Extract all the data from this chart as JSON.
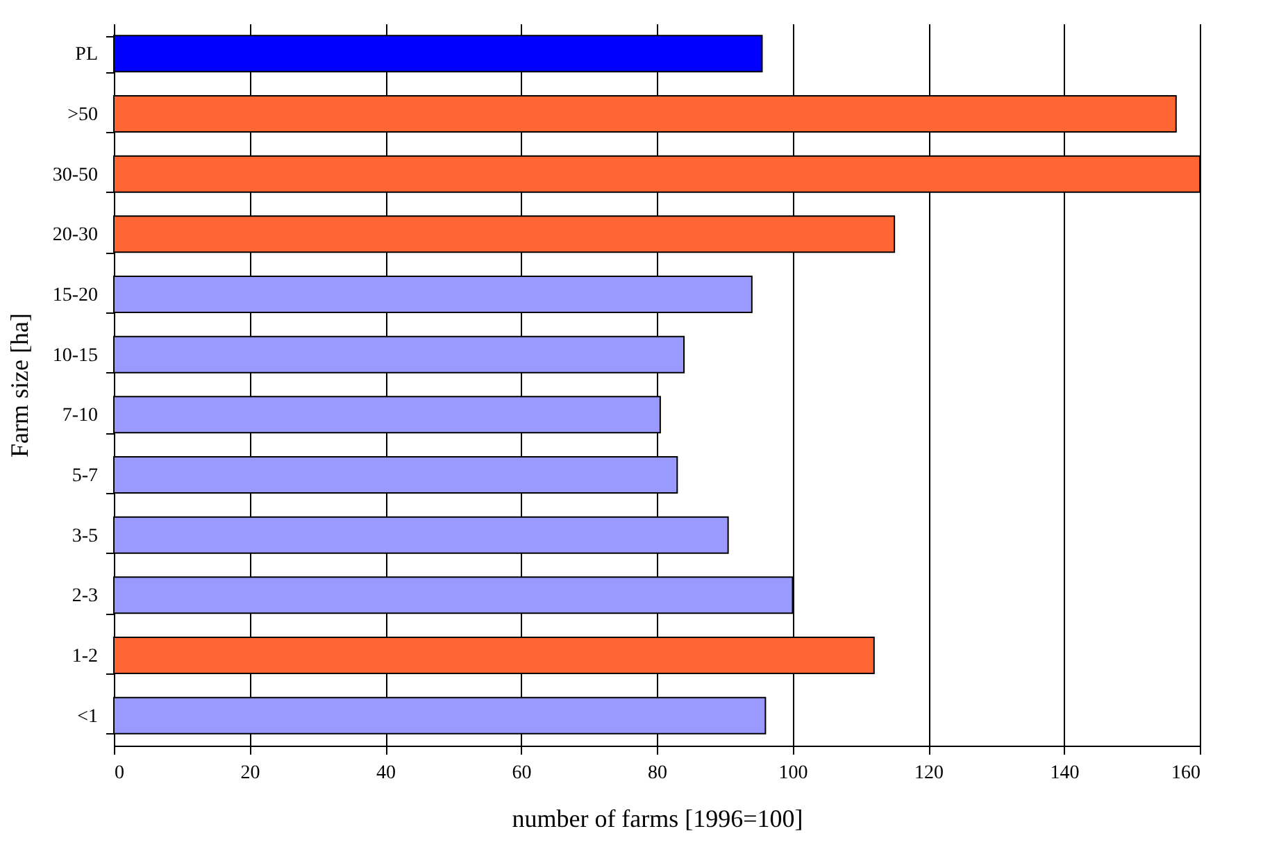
{
  "chart_data": {
    "type": "bar",
    "orientation": "horizontal",
    "xlabel": "number of farms [1996=100]",
    "ylabel": "Farm size [ha]",
    "categories": [
      "PL",
      ">50",
      "30-50",
      "20-30",
      "15-20",
      "10-15",
      "7-10",
      "5-7",
      "3-5",
      "2-3",
      "1-2",
      "<1"
    ],
    "values": [
      95.5,
      156.5,
      160,
      115,
      94,
      84,
      80.5,
      83,
      90.5,
      100,
      112,
      96
    ],
    "colors": [
      "#0000ff",
      "#ff6633",
      "#ff6633",
      "#ff6633",
      "#9999ff",
      "#9999ff",
      "#9999ff",
      "#9999ff",
      "#9999ff",
      "#9999ff",
      "#ff6633",
      "#9999ff"
    ],
    "xlim": [
      0,
      160
    ],
    "xticks": [
      0,
      20,
      40,
      60,
      80,
      100,
      120,
      140,
      160
    ],
    "grid": "x"
  }
}
